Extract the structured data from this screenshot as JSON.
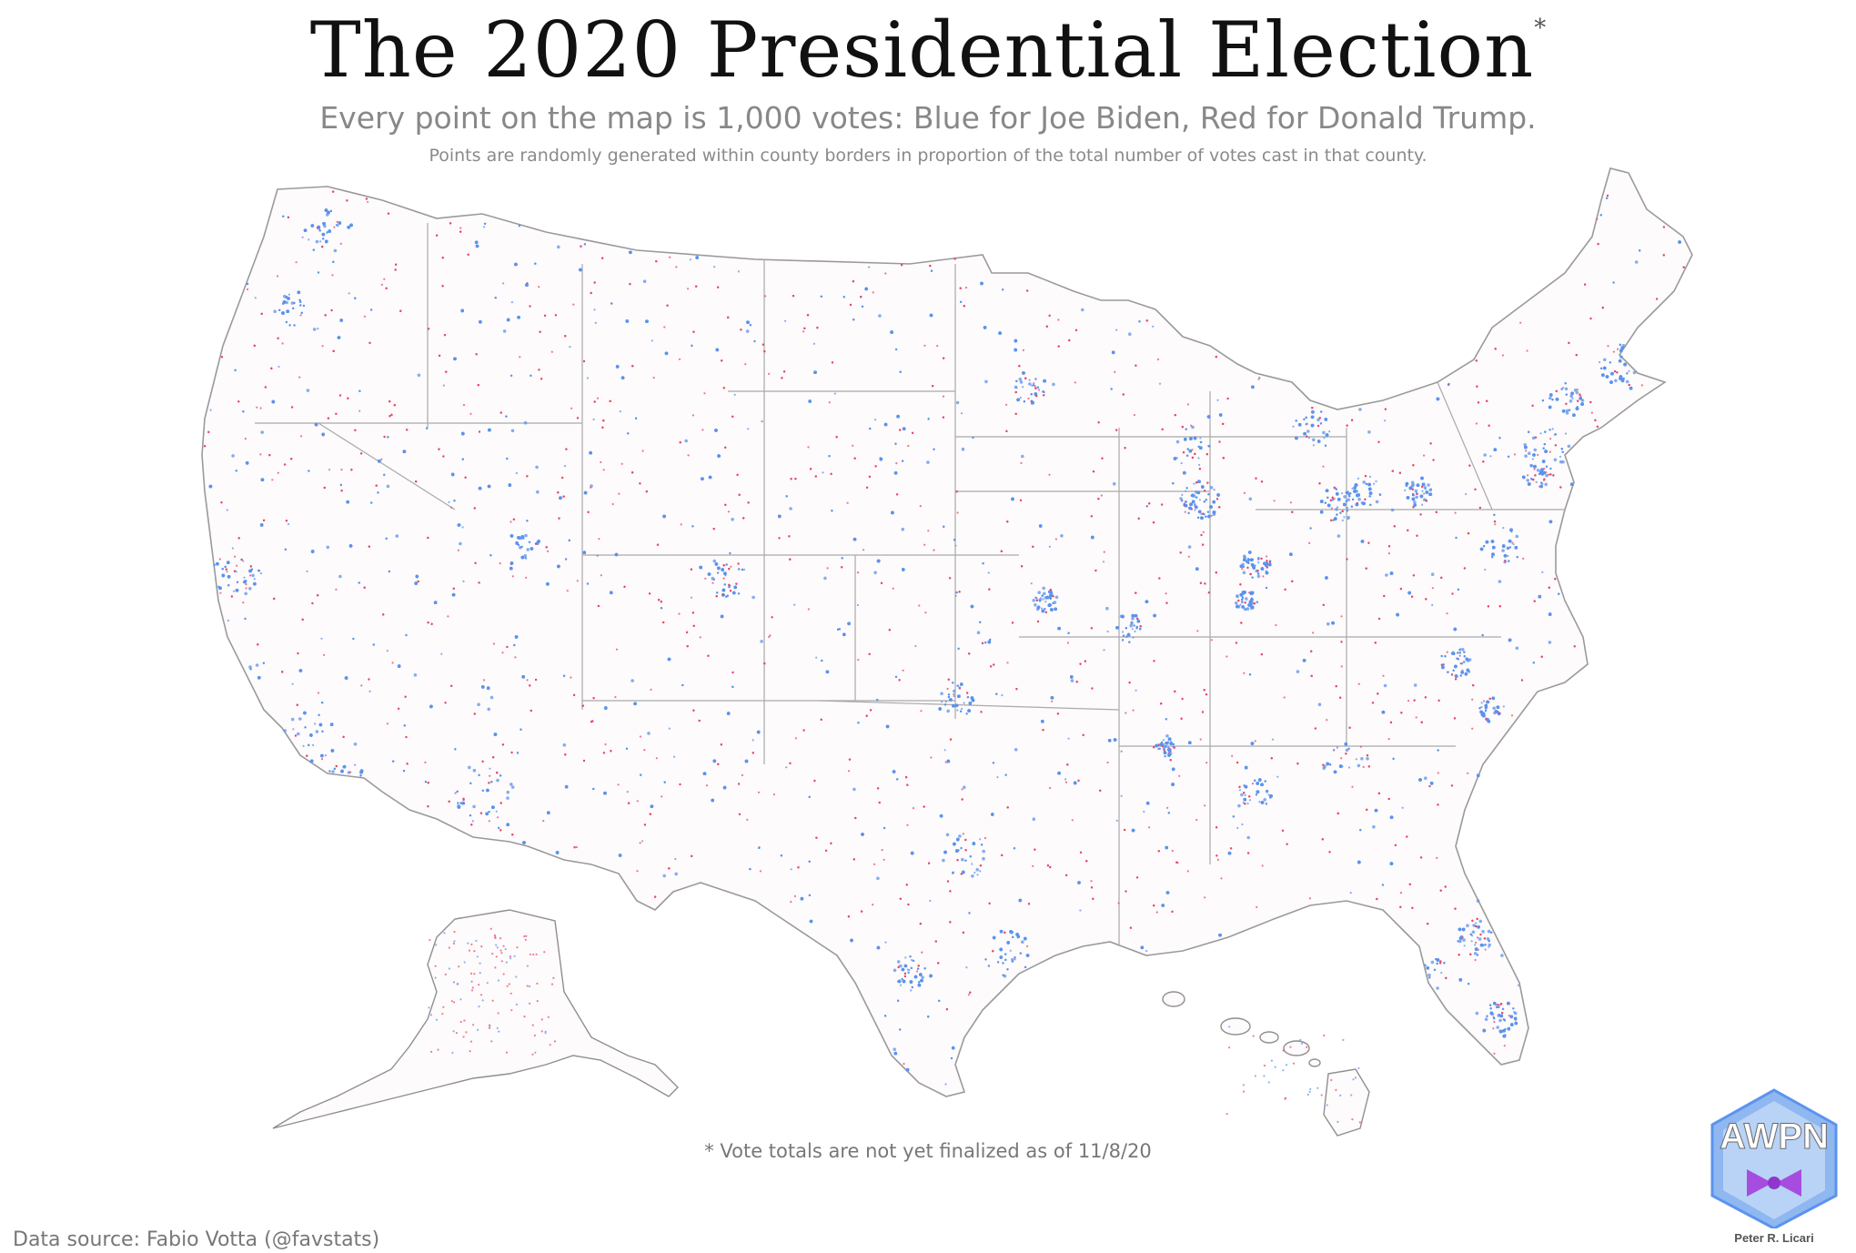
{
  "header": {
    "title": "The 2020 Presidential Election",
    "title_marker": "*",
    "subtitle": "Every point on the map is 1,000 votes: Blue for Joe Biden, Red for Donald Trump.",
    "note": "Points are randomly generated within county borders in proportion of the total number of votes cast in that county."
  },
  "map": {
    "colors": {
      "biden": "#5b93ee",
      "trump": "#e8476a",
      "borders": "#a9a9a9",
      "background": "#fdfbfb"
    },
    "vote_unit": "1,000 votes"
  },
  "footer": {
    "footnote": "* Vote totals are not yet finalized as of 11/8/20",
    "source": "Data source: Fabio Votta (@favstats)",
    "logo_text": "AWPN",
    "author": "Peter R. Licari"
  }
}
